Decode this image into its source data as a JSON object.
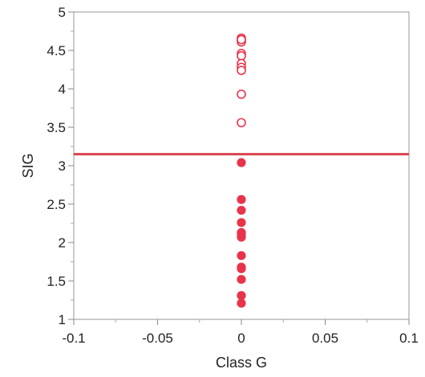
{
  "chart_data": {
    "type": "scatter",
    "title": "",
    "xlabel": "Class G",
    "ylabel": "SIG",
    "xlim": [
      -0.1,
      0.1
    ],
    "ylim": [
      1,
      5
    ],
    "x_ticks": [
      -0.1,
      -0.05,
      0,
      0.05,
      0.1
    ],
    "x_tick_labels": [
      "-0.1",
      "-0.05",
      "0",
      "0.05",
      "0.1"
    ],
    "y_ticks": [
      1,
      1.5,
      2,
      2.5,
      3,
      3.5,
      4,
      4.5,
      5
    ],
    "y_tick_labels": [
      "1",
      "1.5",
      "2",
      "2.5",
      "3",
      "3.5",
      "4",
      "4.5",
      "5"
    ],
    "grid": false,
    "reference_line": {
      "y": 3.15,
      "color": "#d9434f"
    },
    "series": [
      {
        "marker": "open-circle",
        "color": "#e8344a",
        "x": [
          0,
          0,
          0,
          0,
          0,
          0,
          0,
          0,
          0,
          0,
          0
        ],
        "y": [
          4.66,
          4.63,
          4.61,
          4.46,
          4.43,
          4.33,
          4.28,
          4.24,
          3.93,
          3.56,
          4.64
        ]
      },
      {
        "marker": "filled-circle",
        "color": "#e8344a",
        "x": [
          0,
          0,
          0,
          0,
          0,
          0,
          0,
          0,
          0,
          0,
          0,
          0,
          0
        ],
        "y": [
          3.04,
          2.56,
          2.42,
          2.26,
          2.13,
          2.07,
          1.83,
          1.68,
          1.66,
          1.52,
          1.31,
          1.21,
          2.1
        ]
      }
    ]
  }
}
